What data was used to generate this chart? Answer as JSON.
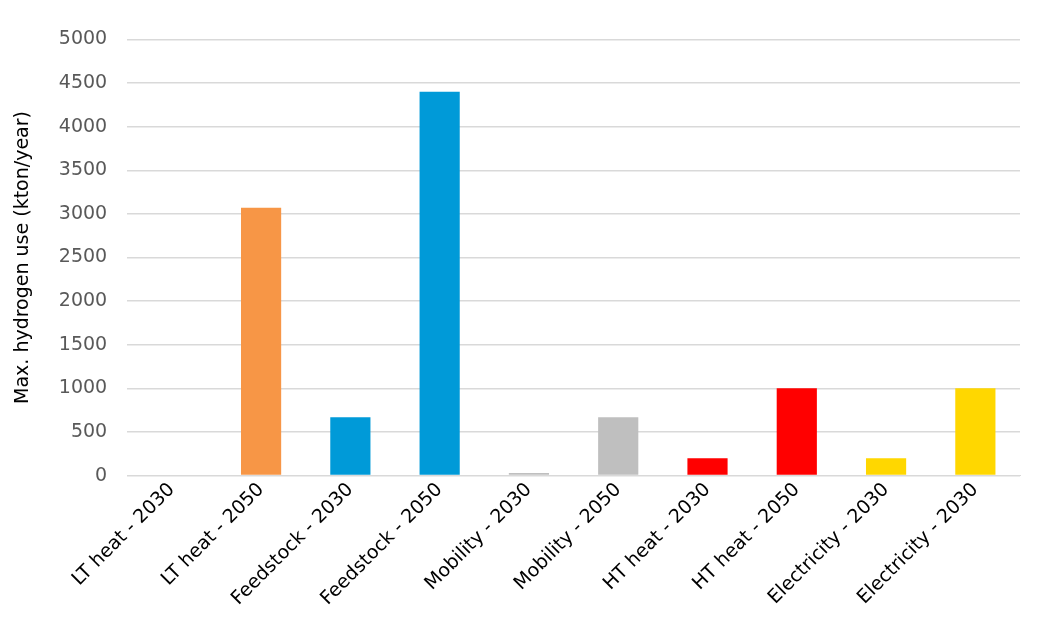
{
  "chart_data": {
    "type": "bar",
    "ylabel": "Max. hydrogen use (kton/year)",
    "categories": [
      "LT heat - 2030",
      "LT heat - 2050",
      "Feedstock - 2030",
      "Feedstock - 2050",
      "Mobility - 2030",
      "Mobility - 2050",
      "HT heat - 2030",
      "HT heat - 2050",
      "Electricity - 2030",
      "Electricity - 2030"
    ],
    "values": [
      0,
      3070,
      670,
      4400,
      30,
      670,
      200,
      1000,
      200,
      1000
    ],
    "colors": [
      "#f79646",
      "#f79646",
      "#009ad8",
      "#009ad8",
      "#bfbfbf",
      "#bfbfbf",
      "#ff0000",
      "#ff0000",
      "#ffd700",
      "#ffd700"
    ],
    "ylim": [
      0,
      5000
    ],
    "yticks": [
      0,
      500,
      1000,
      1500,
      2000,
      2500,
      3000,
      3500,
      4000,
      4500,
      5000
    ],
    "grid": "y",
    "legend": false
  }
}
